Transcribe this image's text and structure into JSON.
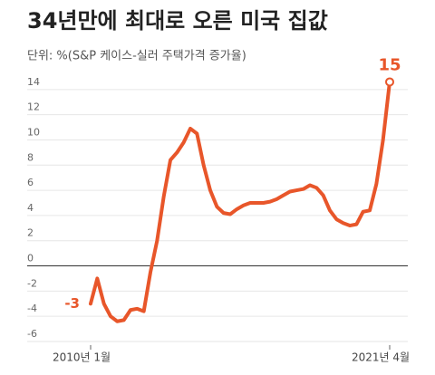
{
  "chart_data": {
    "type": "line",
    "title": "34년만에 최대로 오른 미국 집값",
    "subtitle": "단위: %(S&P 케이스-실러 주택가격 증가율)",
    "categories": [
      "2010년 1월",
      null,
      null,
      null,
      null,
      null,
      null,
      null,
      null,
      null,
      null,
      null,
      null,
      null,
      null,
      null,
      null,
      null,
      null,
      null,
      null,
      null,
      null,
      null,
      null,
      null,
      null,
      null,
      null,
      null,
      null,
      null,
      null,
      null,
      null,
      null,
      null,
      null,
      null,
      null,
      null,
      null,
      null,
      null,
      null,
      "2021년 4월"
    ],
    "series": [
      {
        "color": "#e8562a",
        "values": [
          -3,
          -1.0,
          -3.0,
          -4.0,
          -4.4,
          -4.3,
          -3.5,
          -3.4,
          -3.6,
          -0.5,
          2.0,
          5.5,
          8.4,
          9.0,
          9.8,
          10.9,
          10.5,
          8.0,
          6.0,
          4.7,
          4.2,
          4.1,
          4.5,
          4.8,
          5.0,
          5.0,
          5.0,
          5.1,
          5.3,
          5.6,
          5.9,
          6.0,
          6.1,
          6.4,
          6.2,
          5.6,
          4.4,
          3.7,
          3.4,
          3.2,
          3.3,
          4.3,
          4.4,
          6.5,
          10.0,
          14.6
        ],
        "value_labels": [
          "-3",
          null,
          null,
          null,
          null,
          null,
          null,
          null,
          null,
          null,
          null,
          null,
          null,
          null,
          null,
          null,
          null,
          null,
          null,
          null,
          null,
          null,
          null,
          null,
          null,
          null,
          null,
          null,
          null,
          null,
          null,
          null,
          null,
          null,
          null,
          null,
          null,
          null,
          null,
          null,
          null,
          null,
          null,
          null,
          null,
          "15"
        ]
      }
    ],
    "ylim": [
      -6,
      16
    ],
    "yticks": [
      14,
      12,
      10,
      8,
      6,
      4,
      2,
      0,
      -2,
      -4,
      -6
    ],
    "grid": true
  }
}
